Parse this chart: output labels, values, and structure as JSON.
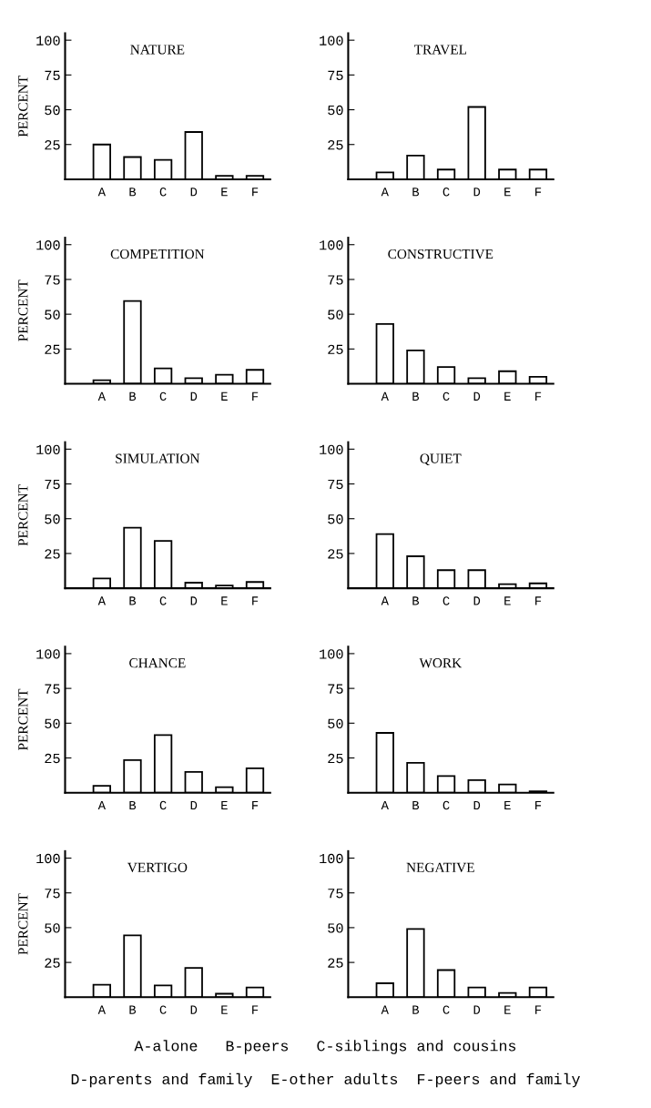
{
  "chart_data": [
    {
      "type": "bar",
      "title": "NATURE",
      "ylabel": "PERCENT",
      "categories": [
        "A",
        "B",
        "C",
        "D",
        "E",
        "F"
      ],
      "values": [
        25,
        16,
        14,
        34,
        2.5,
        2.5
      ],
      "color": "#ffffff",
      "ylim": [
        0,
        105
      ],
      "yticks": [
        25,
        50,
        75,
        100
      ],
      "grid": false
    },
    {
      "type": "bar",
      "title": "TRAVEL",
      "categories": [
        "A",
        "B",
        "C",
        "D",
        "E",
        "F"
      ],
      "values": [
        5,
        17,
        7,
        52,
        7,
        7
      ],
      "color": "#ffffff",
      "ylim": [
        0,
        105
      ],
      "yticks": [
        25,
        50,
        75,
        100
      ],
      "grid": false
    },
    {
      "type": "bar",
      "title": "COMPETITION",
      "ylabel": "PERCENT",
      "categories": [
        "A",
        "B",
        "C",
        "D",
        "E",
        "F"
      ],
      "values": [
        2.5,
        59.5,
        11,
        4,
        6.5,
        10
      ],
      "color": "#ffffff",
      "ylim": [
        0,
        105
      ],
      "yticks": [
        25,
        50,
        75,
        100
      ],
      "grid": false
    },
    {
      "type": "bar",
      "title": "CONSTRUCTIVE",
      "categories": [
        "A",
        "B",
        "C",
        "D",
        "E",
        "F"
      ],
      "values": [
        43,
        24,
        12,
        4,
        9,
        5
      ],
      "color": "#ffffff",
      "ylim": [
        0,
        105
      ],
      "yticks": [
        25,
        50,
        75,
        100
      ],
      "grid": false
    },
    {
      "type": "bar",
      "title": "SIMULATION",
      "ylabel": "PERCENT",
      "categories": [
        "A",
        "B",
        "C",
        "D",
        "E",
        "F"
      ],
      "values": [
        7,
        43.5,
        34,
        4,
        2,
        4.5
      ],
      "color": "#ffffff",
      "ylim": [
        0,
        105
      ],
      "yticks": [
        25,
        50,
        75,
        100
      ],
      "grid": false
    },
    {
      "type": "bar",
      "title": "QUIET",
      "categories": [
        "A",
        "B",
        "C",
        "D",
        "E",
        "F"
      ],
      "values": [
        39,
        23,
        13,
        13,
        3,
        3.5
      ],
      "color": "#ffffff",
      "ylim": [
        0,
        105
      ],
      "yticks": [
        25,
        50,
        75,
        100
      ],
      "grid": false
    },
    {
      "type": "bar",
      "title": "CHANCE",
      "ylabel": "PERCENT",
      "categories": [
        "A",
        "B",
        "C",
        "D",
        "E",
        "F"
      ],
      "values": [
        5,
        23.5,
        41.5,
        15,
        4,
        17.5
      ],
      "color": "#ffffff",
      "ylim": [
        0,
        105
      ],
      "yticks": [
        25,
        50,
        75,
        100
      ],
      "grid": false
    },
    {
      "type": "bar",
      "title": "WORK",
      "categories": [
        "A",
        "B",
        "C",
        "D",
        "E",
        "F"
      ],
      "values": [
        43,
        21.5,
        12,
        9,
        6,
        1
      ],
      "color": "#ffffff",
      "ylim": [
        0,
        105
      ],
      "yticks": [
        25,
        50,
        75,
        100
      ],
      "grid": false
    },
    {
      "type": "bar",
      "title": "VERTIGO",
      "ylabel": "PERCENT",
      "categories": [
        "A",
        "B",
        "C",
        "D",
        "E",
        "F"
      ],
      "values": [
        9,
        44.5,
        8.5,
        21,
        2.5,
        7
      ],
      "color": "#ffffff",
      "ylim": [
        0,
        105
      ],
      "yticks": [
        25,
        50,
        75,
        100
      ],
      "grid": false
    },
    {
      "type": "bar",
      "title": "NEGATIVE",
      "categories": [
        "A",
        "B",
        "C",
        "D",
        "E",
        "F"
      ],
      "values": [
        10,
        49,
        19.5,
        7,
        3,
        7
      ],
      "color": "#ffffff",
      "ylim": [
        0,
        105
      ],
      "yticks": [
        25,
        50,
        75,
        100
      ],
      "grid": false,
      "annotations": [
        "A-alone   B-peers   C-siblings and cousins",
        "D-parents and family  E-other adults  F-peers and family"
      ]
    }
  ]
}
